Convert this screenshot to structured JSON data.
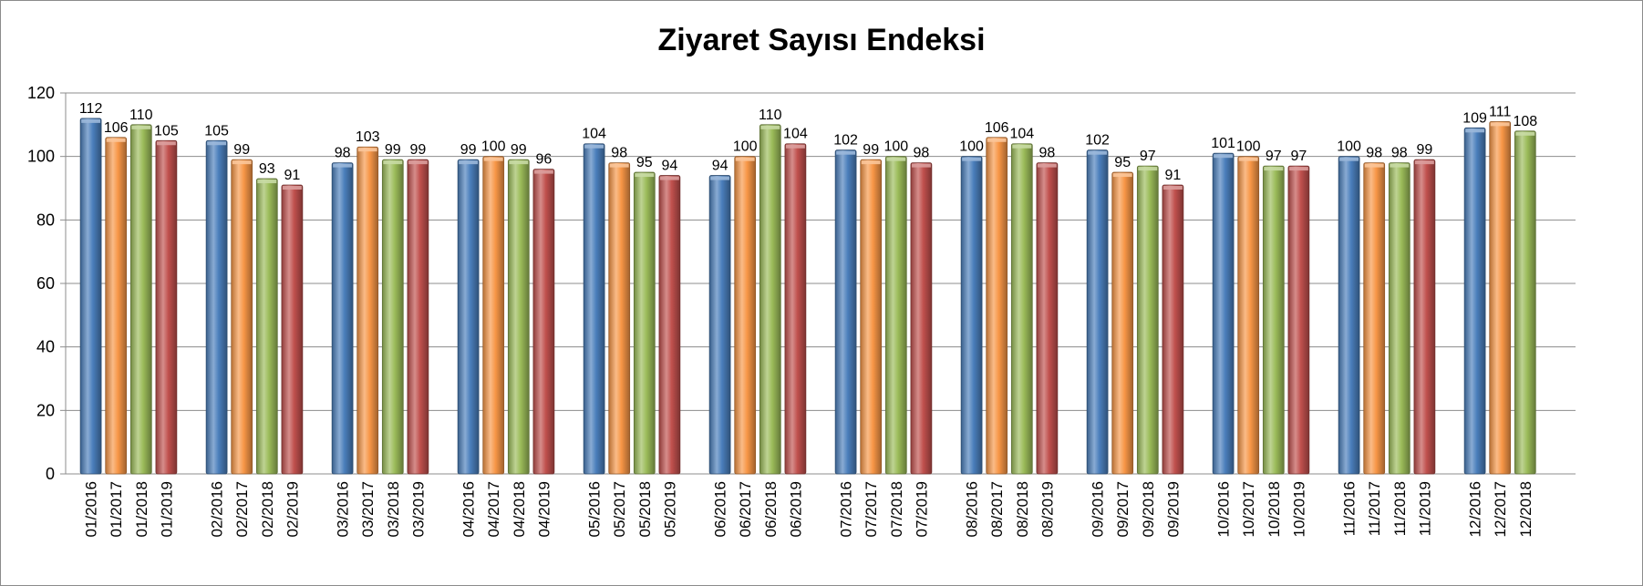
{
  "chart_data": {
    "type": "bar",
    "title": "Ziyaret Sayısı Endeksi",
    "ylim": [
      0,
      120
    ],
    "yticks": [
      0,
      20,
      40,
      60,
      80,
      100,
      120
    ],
    "grid": true,
    "legend": "none",
    "series_colors": [
      "#4a7ebb",
      "#f79646",
      "#9bbb59",
      "#c0504d"
    ],
    "groups": [
      {
        "bars": [
          {
            "category": "01/2016",
            "value": 112,
            "label": "112"
          },
          {
            "category": "01/2017",
            "value": 106,
            "label": "106"
          },
          {
            "category": "01/2018",
            "value": 110,
            "label": "110"
          },
          {
            "category": "01/2019",
            "value": 105,
            "label": "105"
          }
        ]
      },
      {
        "bars": [
          {
            "category": "02/2016",
            "value": 105,
            "label": "105"
          },
          {
            "category": "02/2017",
            "value": 99,
            "label": "99"
          },
          {
            "category": "02/2018",
            "value": 93,
            "label": "93"
          },
          {
            "category": "02/2019",
            "value": 91,
            "label": "91"
          }
        ]
      },
      {
        "bars": [
          {
            "category": "03/2016",
            "value": 98,
            "label": "98"
          },
          {
            "category": "03/2017",
            "value": 103,
            "label": "103"
          },
          {
            "category": "03/2018",
            "value": 99,
            "label": "99"
          },
          {
            "category": "03/2019",
            "value": 99,
            "label": "99"
          }
        ]
      },
      {
        "bars": [
          {
            "category": "04/2016",
            "value": 99,
            "label": "99"
          },
          {
            "category": "04/2017",
            "value": 100,
            "label": "100"
          },
          {
            "category": "04/2018",
            "value": 99,
            "label": "99"
          },
          {
            "category": "04/2019",
            "value": 96,
            "label": "96"
          }
        ]
      },
      {
        "bars": [
          {
            "category": "05/2016",
            "value": 104,
            "label": "104"
          },
          {
            "category": "05/2017",
            "value": 98,
            "label": "98"
          },
          {
            "category": "05/2018",
            "value": 95,
            "label": "95"
          },
          {
            "category": "05/2019",
            "value": 94,
            "label": "94"
          }
        ]
      },
      {
        "bars": [
          {
            "category": "06/2016",
            "value": 94,
            "label": "94"
          },
          {
            "category": "06/2017",
            "value": 100,
            "label": "100"
          },
          {
            "category": "06/2018",
            "value": 110,
            "label": "110"
          },
          {
            "category": "06/2019",
            "value": 104,
            "label": "104"
          }
        ]
      },
      {
        "bars": [
          {
            "category": "07/2016",
            "value": 102,
            "label": "102"
          },
          {
            "category": "07/2017",
            "value": 99,
            "label": "99"
          },
          {
            "category": "07/2018",
            "value": 100,
            "label": "100"
          },
          {
            "category": "07/2019",
            "value": 98,
            "label": "98"
          }
        ]
      },
      {
        "bars": [
          {
            "category": "08/2016",
            "value": 100,
            "label": "100"
          },
          {
            "category": "08/2017",
            "value": 106,
            "label": "106"
          },
          {
            "category": "08/2018",
            "value": 104,
            "label": "104"
          },
          {
            "category": "08/2019",
            "value": 98,
            "label": "98"
          }
        ]
      },
      {
        "bars": [
          {
            "category": "09/2016",
            "value": 102,
            "label": "102"
          },
          {
            "category": "09/2017",
            "value": 95,
            "label": "95"
          },
          {
            "category": "09/2018",
            "value": 97,
            "label": "97"
          },
          {
            "category": "09/2019",
            "value": 91,
            "label": "91"
          }
        ]
      },
      {
        "bars": [
          {
            "category": "10/2016",
            "value": 101,
            "label": "101"
          },
          {
            "category": "10/2017",
            "value": 100,
            "label": "100"
          },
          {
            "category": "10/2018",
            "value": 97,
            "label": "97"
          },
          {
            "category": "10/2019",
            "value": 97,
            "label": "97"
          }
        ]
      },
      {
        "bars": [
          {
            "category": "11/2016",
            "value": 100,
            "label": "100"
          },
          {
            "category": "11/2017",
            "value": 98,
            "label": "98"
          },
          {
            "category": "11/2018",
            "value": 98,
            "label": "98"
          },
          {
            "category": "11/2019",
            "value": 99,
            "label": "99"
          }
        ]
      },
      {
        "bars": [
          {
            "category": "12/2016",
            "value": 109,
            "label": "109"
          },
          {
            "category": "12/2017",
            "value": 111,
            "label": "111"
          },
          {
            "category": "12/2018",
            "value": 108,
            "label": "108"
          }
        ]
      }
    ]
  }
}
